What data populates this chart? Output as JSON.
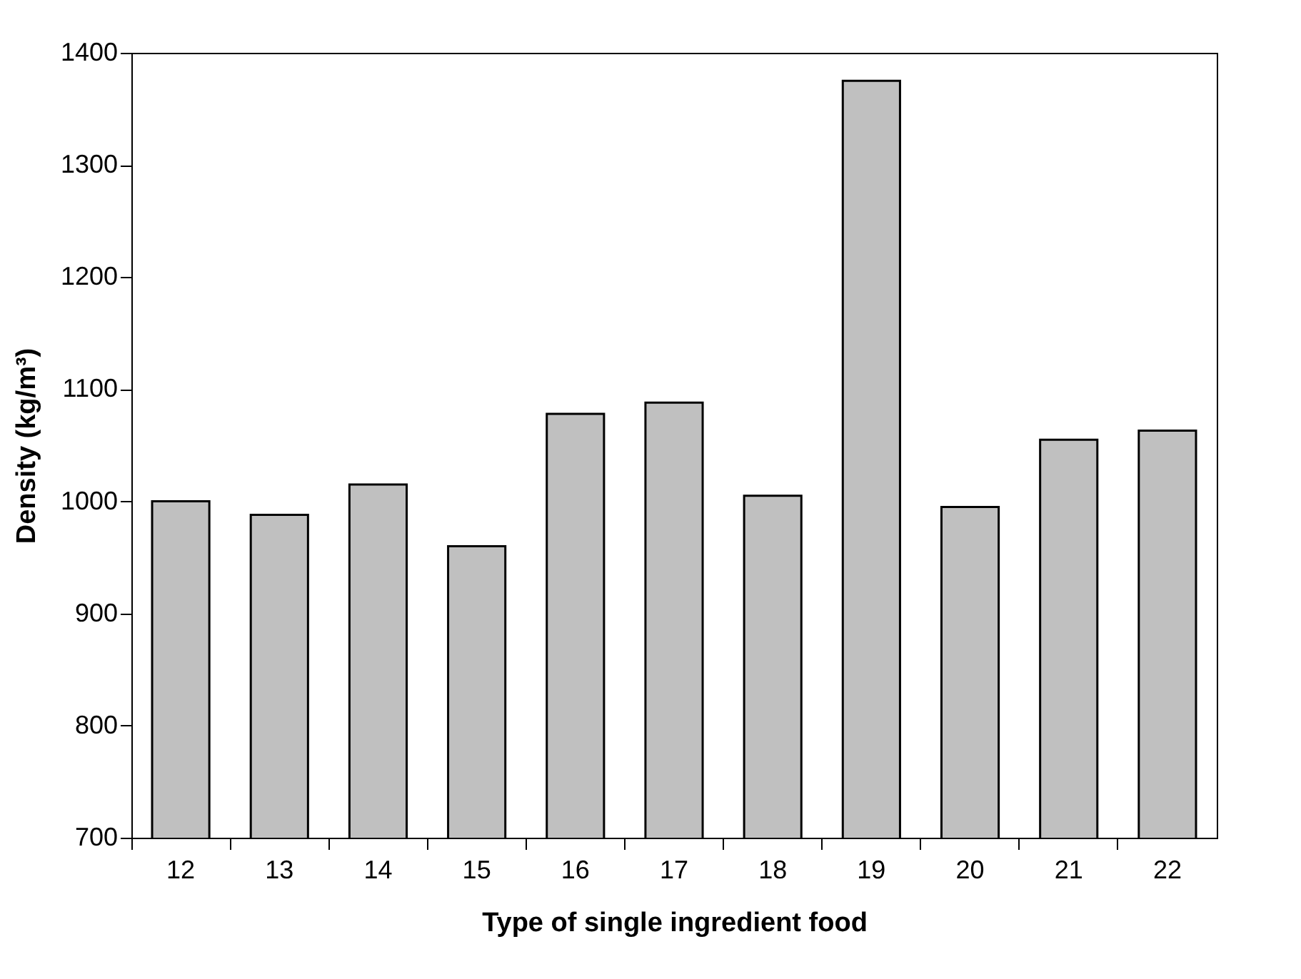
{
  "chart_data": {
    "type": "bar",
    "xlabel": "Type of single ingredient food",
    "ylabel": "Density (kg/m³)",
    "categories": [
      "12",
      "13",
      "14",
      "15",
      "16",
      "17",
      "18",
      "19",
      "20",
      "21",
      "22"
    ],
    "values": [
      1000,
      988,
      1015,
      960,
      1078,
      1088,
      1005,
      1375,
      995,
      1055,
      1063
    ],
    "color": "#c0c0c0",
    "ylim": [
      700,
      1400
    ],
    "yticks": [
      700,
      800,
      900,
      1000,
      1100,
      1200,
      1300,
      1400
    ],
    "grid": false
  }
}
